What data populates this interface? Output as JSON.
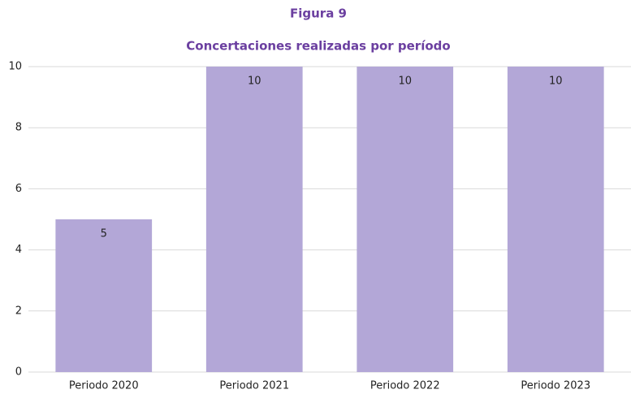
{
  "chart_data": {
    "type": "bar",
    "figure_label": "Figura 9",
    "title": "Concertaciones realizadas por período",
    "categories": [
      "Periodo 2020",
      "Periodo 2021",
      "Periodo 2022",
      "Periodo 2023"
    ],
    "values": [
      5,
      10,
      10,
      10
    ],
    "color": "#b3a7d7",
    "ylim": [
      0,
      10
    ],
    "yticks": [
      0,
      2,
      4,
      6,
      8,
      10
    ],
    "grid": true
  }
}
